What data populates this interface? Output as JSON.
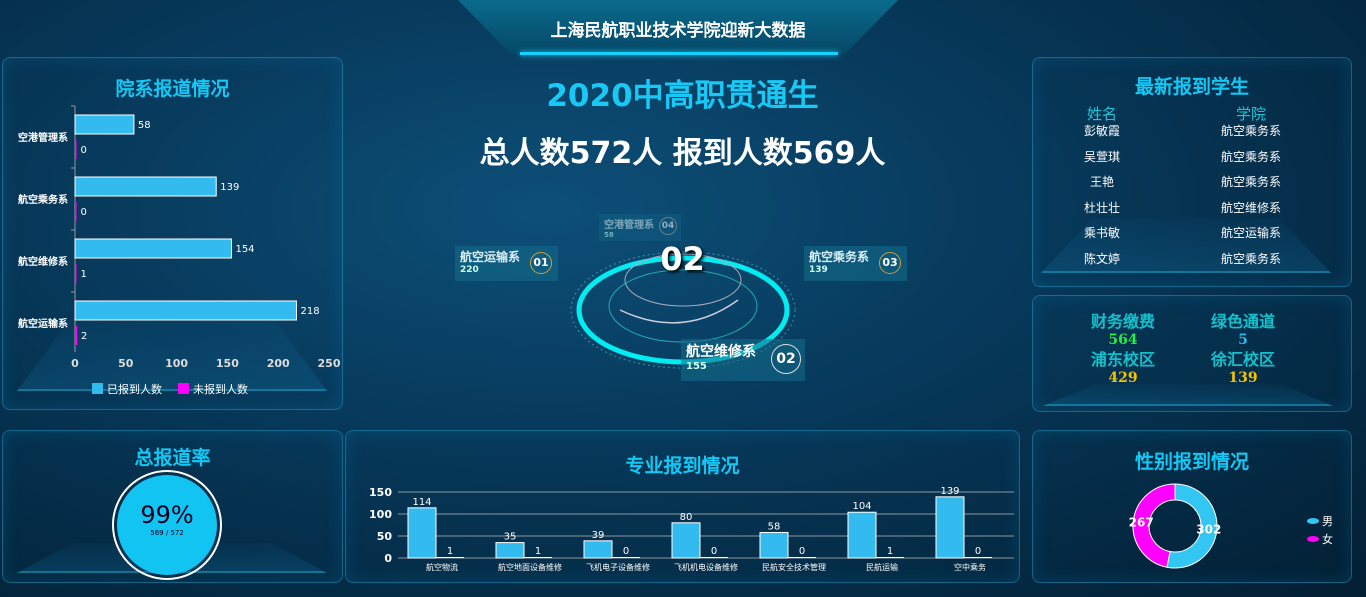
{
  "header": {
    "title": "上海民航职业技术学院迎新大数据"
  },
  "center": {
    "heading": "2020中高职贯通生",
    "summary": "总人数572人  报到人数569人",
    "active_index": "02",
    "departments": [
      {
        "name": "航空运输系",
        "value": "220",
        "index": "01"
      },
      {
        "name": "航空维修系",
        "value": "155",
        "index": "02"
      },
      {
        "name": "航空乘务系",
        "value": "139",
        "index": "03"
      },
      {
        "name": "空港管理系",
        "value": "58",
        "index": "04"
      }
    ]
  },
  "dept_chart": {
    "title": "院系报道情况",
    "chart_data": {
      "type": "bar",
      "orientation": "horizontal",
      "categories": [
        "空港管理系",
        "航空乘务系",
        "航空维修系",
        "航空运输系"
      ],
      "series": [
        {
          "name": "已报到人数",
          "values": [
            58,
            139,
            154,
            218
          ],
          "color": "#33bbf0"
        },
        {
          "name": "未报到人数",
          "values": [
            0,
            0,
            1,
            2
          ],
          "color": "#ff00ff"
        }
      ],
      "xlim": [
        0,
        250
      ],
      "xticks": [
        "0",
        "50",
        "100",
        "150",
        "200",
        "250"
      ],
      "legend": "bottom"
    }
  },
  "rate": {
    "title": "总报道率",
    "percent": "99%",
    "fraction": "569 / 572",
    "value": 0.99
  },
  "major_chart": {
    "title": "专业报到情况",
    "chart_data": {
      "type": "bar",
      "categories": [
        "航空物流",
        "航空地面设备维修",
        "飞机电子设备维修",
        "飞机机电设备维修",
        "民航安全技术管理",
        "民航运输",
        "空中乘务"
      ],
      "series": [
        {
          "values": [
            114,
            35,
            39,
            80,
            58,
            104,
            139
          ],
          "color": "#33bbf0"
        },
        {
          "values": [
            1,
            1,
            0,
            0,
            0,
            1,
            0
          ],
          "color": "#ffffff"
        }
      ],
      "ylim": [
        0,
        150
      ],
      "yticks": [
        "0",
        "50",
        "100",
        "150"
      ],
      "grid": true
    }
  },
  "latest": {
    "title": "最新报到学生",
    "col_name": "姓名",
    "col_dept": "学院",
    "rows": [
      {
        "name": "彭敏霞",
        "dept": "航空乘务系"
      },
      {
        "name": "吴萱琪",
        "dept": "航空乘务系"
      },
      {
        "name": "王艳",
        "dept": "航空乘务系"
      },
      {
        "name": "杜壮壮",
        "dept": "航空维修系"
      },
      {
        "name": "乘书敏",
        "dept": "航空运输系"
      },
      {
        "name": "陈文婷",
        "dept": "航空乘务系"
      }
    ]
  },
  "stats": [
    {
      "label": "财务缴费",
      "value": "564",
      "color": "#22ee44"
    },
    {
      "label": "绿色通道",
      "value": "5",
      "color": "#22bbee"
    },
    {
      "label": "浦东校区",
      "value": "429",
      "color": "#f5c400"
    },
    {
      "label": "徐汇校区",
      "value": "139",
      "color": "#f5c400"
    }
  ],
  "gender": {
    "title": "性别报到情况",
    "chart_data": {
      "type": "pie",
      "donut": true,
      "slices": [
        {
          "name": "男",
          "value": 302,
          "color": "#33c6f2"
        },
        {
          "name": "女",
          "value": 267,
          "color": "#ff00ff"
        }
      ],
      "legend": "right"
    }
  }
}
